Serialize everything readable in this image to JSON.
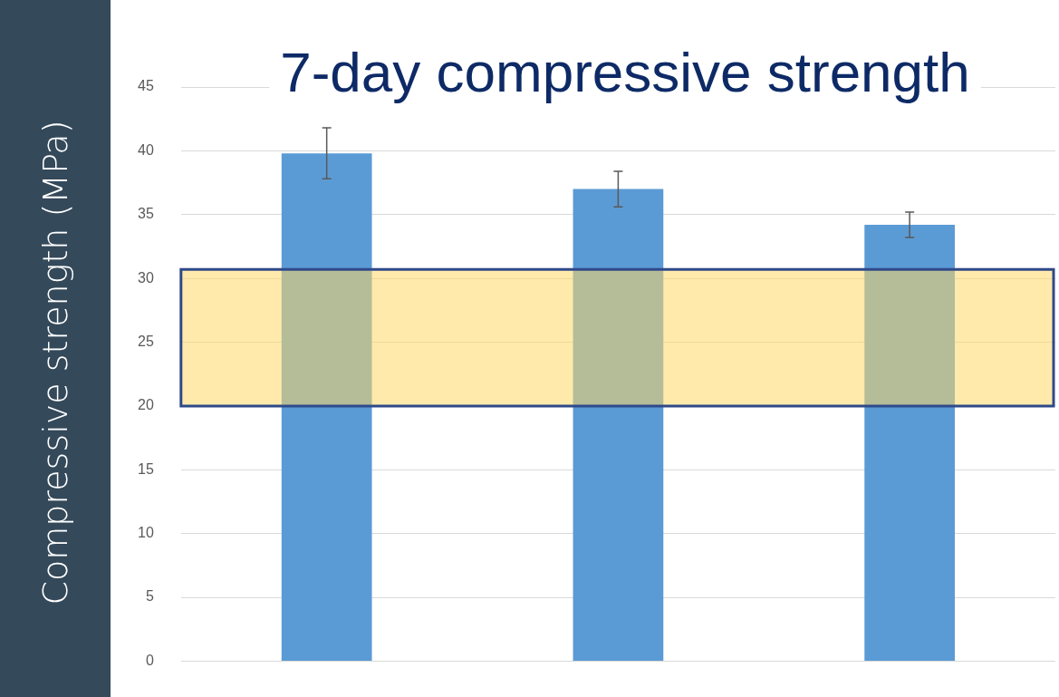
{
  "chart_data": {
    "type": "bar",
    "title": "7-day compressive strength",
    "ylabel": "Compressive strength (MPa)",
    "categories": [
      null,
      null,
      null
    ],
    "values": [
      39.8,
      37.0,
      34.2
    ],
    "errors": [
      2.0,
      1.4,
      1.0
    ],
    "color": "#5b9bd5",
    "ylim": [
      0,
      45
    ],
    "yticks": [
      0,
      5,
      10,
      15,
      20,
      25,
      30,
      35,
      40,
      45
    ],
    "grid": "y",
    "bands": [
      {
        "axis": "y",
        "from": 20,
        "to": 30.7,
        "color": "#ffd966"
      }
    ]
  }
}
